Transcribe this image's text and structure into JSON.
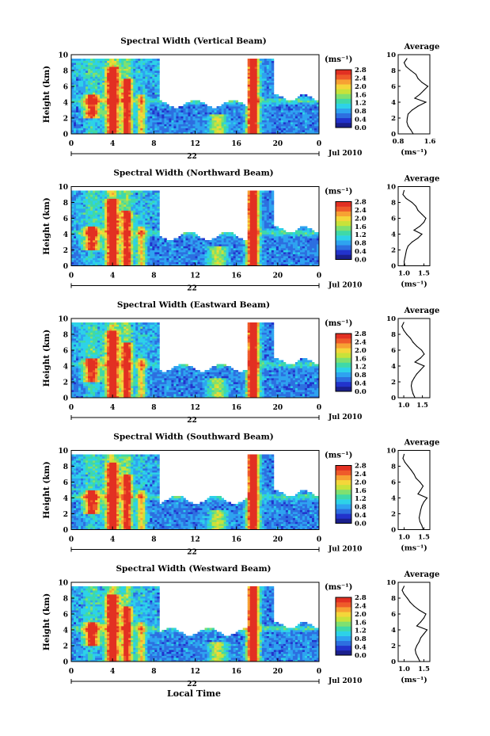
{
  "figure": {
    "xlabel": "Local Time",
    "colors": {
      "scale": [
        "#1a1f8c",
        "#2233cc",
        "#2d6fe0",
        "#2ea3f0",
        "#2dd2e8",
        "#3fd9a8",
        "#7fe070",
        "#c8e23a",
        "#f4d63a",
        "#f7a133",
        "#ef5a2a",
        "#e23022"
      ],
      "background": "#ffffff"
    }
  },
  "chart_data": [
    {
      "type": "heatmap",
      "title": "Spectral Width (Vertical Beam)",
      "ylabel": "Height (km)",
      "x_ticks": [
        "0",
        "4",
        "8",
        "12",
        "16",
        "20",
        "0"
      ],
      "xlim": [
        0,
        24
      ],
      "y_ticks": [
        "0",
        "2",
        "4",
        "6",
        "8",
        "10"
      ],
      "ylim": [
        0,
        10
      ],
      "day_label": "22",
      "date_label": "Jul 2010",
      "colorbar": {
        "unit": "(ms⁻¹)",
        "ticks": [
          "0.0",
          "0.4",
          "0.8",
          "1.2",
          "1.6",
          "2.0",
          "2.4",
          "2.8"
        ],
        "range": [
          0.0,
          2.8
        ]
      },
      "profile": {
        "title": "Average",
        "xlabel": "(ms⁻¹)",
        "x_ticks": [
          "0.8",
          "1.6"
        ],
        "xlim": [
          0.8,
          1.6
        ],
        "ylim": [
          0,
          10
        ],
        "height_km": [
          0,
          0.5,
          1,
          1.5,
          2,
          2.5,
          3,
          3.5,
          4,
          4.5,
          5,
          5.5,
          6,
          6.5,
          7,
          7.5,
          8,
          8.5,
          9,
          9.5
        ],
        "values": [
          1.18,
          1.12,
          1.05,
          1.02,
          1.03,
          1.05,
          1.15,
          1.3,
          1.5,
          1.22,
          1.35,
          1.45,
          1.55,
          1.4,
          1.3,
          1.25,
          1.12,
          1.0,
          0.95,
          1.02
        ]
      }
    },
    {
      "type": "heatmap",
      "title": "Spectral Width (Northward Beam)",
      "ylabel": "Height (km)",
      "x_ticks": [
        "0",
        "4",
        "8",
        "12",
        "16",
        "20",
        "0"
      ],
      "xlim": [
        0,
        24
      ],
      "y_ticks": [
        "0",
        "2",
        "4",
        "6",
        "8",
        "10"
      ],
      "ylim": [
        0,
        10
      ],
      "day_label": "22",
      "date_label": "Jul 2010",
      "colorbar": {
        "unit": "(ms⁻¹)",
        "ticks": [
          "0.0",
          "0.4",
          "0.8",
          "1.2",
          "1.6",
          "2.0",
          "2.4",
          "2.8"
        ],
        "range": [
          0.0,
          2.8
        ]
      },
      "profile": {
        "title": "Average",
        "xlabel": "(ms⁻¹)",
        "x_ticks": [
          "1.0",
          "1.5"
        ],
        "xlim": [
          0.85,
          1.65
        ],
        "ylim": [
          0,
          10
        ],
        "height_km": [
          0,
          0.5,
          1,
          1.5,
          2,
          2.5,
          3,
          3.5,
          4,
          4.5,
          5,
          5.5,
          6,
          6.5,
          7,
          7.5,
          8,
          8.5,
          9,
          9.5
        ],
        "values": [
          1.02,
          1.0,
          1.02,
          1.04,
          1.06,
          1.1,
          1.2,
          1.35,
          1.45,
          1.25,
          1.4,
          1.5,
          1.55,
          1.45,
          1.35,
          1.3,
          1.2,
          1.05,
          0.97,
          1.0
        ]
      }
    },
    {
      "type": "heatmap",
      "title": "Spectral Width (Eastward Beam)",
      "ylabel": "Height (km)",
      "x_ticks": [
        "0",
        "4",
        "8",
        "12",
        "16",
        "20",
        "0"
      ],
      "xlim": [
        0,
        24
      ],
      "y_ticks": [
        "0",
        "2",
        "4",
        "6",
        "8",
        "10"
      ],
      "ylim": [
        0,
        10
      ],
      "day_label": "22",
      "date_label": "Jul 2010",
      "colorbar": {
        "unit": "(ms⁻¹)",
        "ticks": [
          "0.0",
          "0.4",
          "0.8",
          "1.2",
          "1.6",
          "2.0",
          "2.4",
          "2.8"
        ],
        "range": [
          0.0,
          2.8
        ]
      },
      "profile": {
        "title": "Average",
        "xlabel": "",
        "x_ticks": [
          "1.0",
          "1.5"
        ],
        "xlim": [
          0.85,
          1.7
        ],
        "ylim": [
          0,
          10
        ],
        "height_km": [
          0,
          0.5,
          1,
          1.5,
          2,
          2.5,
          3,
          3.5,
          4,
          4.5,
          5,
          5.5,
          6,
          6.5,
          7,
          7.5,
          8,
          8.5,
          9,
          9.5
        ],
        "values": [
          1.3,
          1.25,
          1.22,
          1.2,
          1.22,
          1.28,
          1.35,
          1.45,
          1.55,
          1.3,
          1.45,
          1.55,
          1.48,
          1.35,
          1.25,
          1.18,
          1.08,
          1.0,
          0.95,
          1.0
        ]
      }
    },
    {
      "type": "heatmap",
      "title": "Spectral Width (Southward Beam)",
      "ylabel": "Height (km)",
      "x_ticks": [
        "0",
        "4",
        "8",
        "12",
        "16",
        "20",
        "0"
      ],
      "xlim": [
        0,
        24
      ],
      "y_ticks": [
        "0",
        "2",
        "4",
        "6",
        "8",
        "10"
      ],
      "ylim": [
        0,
        10
      ],
      "day_label": "22",
      "date_label": "Jul 2010",
      "colorbar": {
        "unit": "(ms⁻¹)",
        "ticks": [
          "0.0",
          "0.4",
          "0.8",
          "1.2",
          "1.6",
          "2.0",
          "2.4",
          "2.8"
        ],
        "range": [
          0.0,
          2.8
        ]
      },
      "profile": {
        "title": "Average",
        "xlabel": "(ms⁻¹)",
        "x_ticks": [
          "1.0",
          "1.5"
        ],
        "xlim": [
          0.85,
          1.65
        ],
        "ylim": [
          0,
          10
        ],
        "height_km": [
          0,
          0.5,
          1,
          1.5,
          2,
          2.5,
          3,
          3.5,
          4,
          4.5,
          5,
          5.5,
          6,
          6.5,
          7,
          7.5,
          8,
          8.5,
          9,
          9.5
        ],
        "values": [
          1.48,
          1.45,
          1.4,
          1.38,
          1.4,
          1.42,
          1.45,
          1.5,
          1.58,
          1.35,
          1.42,
          1.48,
          1.4,
          1.3,
          1.25,
          1.18,
          1.1,
          1.02,
          0.97,
          1.0
        ]
      }
    },
    {
      "type": "heatmap",
      "title": "Spectral Width (Westward Beam)",
      "ylabel": "Height (km)",
      "x_ticks": [
        "0",
        "4",
        "8",
        "12",
        "16",
        "20",
        "0"
      ],
      "xlim": [
        0,
        24
      ],
      "y_ticks": [
        "0",
        "2",
        "4",
        "6",
        "8",
        "10"
      ],
      "ylim": [
        0,
        10
      ],
      "day_label": "22",
      "date_label": "Jul 2010",
      "colorbar": {
        "unit": "(ms⁻¹)",
        "ticks": [
          "0.0",
          "0.4",
          "0.8",
          "1.2",
          "1.6",
          "2.0",
          "2.4",
          "2.8"
        ],
        "range": [
          0.0,
          2.8
        ]
      },
      "profile": {
        "title": "Average",
        "xlabel": "(ms⁻¹)",
        "x_ticks": [
          "1.0",
          "1.5"
        ],
        "xlim": [
          0.85,
          1.65
        ],
        "ylim": [
          0,
          10
        ],
        "height_km": [
          0,
          0.5,
          1,
          1.5,
          2,
          2.5,
          3,
          3.5,
          4,
          4.5,
          5,
          5.5,
          6,
          6.5,
          7,
          7.5,
          8,
          8.5,
          9,
          9.5
        ],
        "values": [
          1.4,
          1.35,
          1.3,
          1.28,
          1.32,
          1.38,
          1.42,
          1.5,
          1.58,
          1.32,
          1.42,
          1.5,
          1.55,
          1.38,
          1.25,
          1.15,
          1.08,
          1.0,
          0.95,
          1.0
        ]
      }
    }
  ]
}
